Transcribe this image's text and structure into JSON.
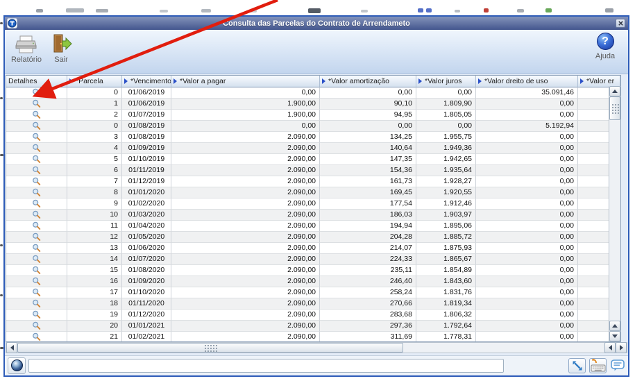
{
  "window": {
    "title": "Consulta das Parcelas do Contrato de Arrendameto"
  },
  "toolbar": {
    "report_label": "Relatório",
    "exit_label": "Sair",
    "help_label": "Ajuda"
  },
  "grid": {
    "columns": [
      "Detalhes",
      "*Parcela",
      "*Vencimento",
      "*Valor a pagar",
      "*Valor amortização",
      "*Valor juros",
      "*Valor dreito de uso",
      "*Valor er"
    ],
    "rows": [
      [
        "0",
        "01/06/2019",
        "0,00",
        "0,00",
        "0,00",
        "35.091,46",
        ""
      ],
      [
        "1",
        "01/06/2019",
        "1.900,00",
        "90,10",
        "1.809,90",
        "0,00",
        ""
      ],
      [
        "2",
        "01/07/2019",
        "1.900,00",
        "94,95",
        "1.805,05",
        "0,00",
        ""
      ],
      [
        "0",
        "01/08/2019",
        "0,00",
        "0,00",
        "0,00",
        "5.192,94",
        ""
      ],
      [
        "3",
        "01/08/2019",
        "2.090,00",
        "134,25",
        "1.955,75",
        "0,00",
        ""
      ],
      [
        "4",
        "01/09/2019",
        "2.090,00",
        "140,64",
        "1.949,36",
        "0,00",
        ""
      ],
      [
        "5",
        "01/10/2019",
        "2.090,00",
        "147,35",
        "1.942,65",
        "0,00",
        ""
      ],
      [
        "6",
        "01/11/2019",
        "2.090,00",
        "154,36",
        "1.935,64",
        "0,00",
        ""
      ],
      [
        "7",
        "01/12/2019",
        "2.090,00",
        "161,73",
        "1.928,27",
        "0,00",
        ""
      ],
      [
        "8",
        "01/01/2020",
        "2.090,00",
        "169,45",
        "1.920,55",
        "0,00",
        ""
      ],
      [
        "9",
        "01/02/2020",
        "2.090,00",
        "177,54",
        "1.912,46",
        "0,00",
        ""
      ],
      [
        "10",
        "01/03/2020",
        "2.090,00",
        "186,03",
        "1.903,97",
        "0,00",
        ""
      ],
      [
        "11",
        "01/04/2020",
        "2.090,00",
        "194,94",
        "1.895,06",
        "0,00",
        ""
      ],
      [
        "12",
        "01/05/2020",
        "2.090,00",
        "204,28",
        "1.885,72",
        "0,00",
        ""
      ],
      [
        "13",
        "01/06/2020",
        "2.090,00",
        "214,07",
        "1.875,93",
        "0,00",
        ""
      ],
      [
        "14",
        "01/07/2020",
        "2.090,00",
        "224,33",
        "1.865,67",
        "0,00",
        ""
      ],
      [
        "15",
        "01/08/2020",
        "2.090,00",
        "235,11",
        "1.854,89",
        "0,00",
        ""
      ],
      [
        "16",
        "01/09/2020",
        "2.090,00",
        "246,40",
        "1.843,60",
        "0,00",
        ""
      ],
      [
        "17",
        "01/10/2020",
        "2.090,00",
        "258,24",
        "1.831,76",
        "0,00",
        ""
      ],
      [
        "18",
        "01/11/2020",
        "2.090,00",
        "270,66",
        "1.819,34",
        "0,00",
        ""
      ],
      [
        "19",
        "01/12/2020",
        "2.090,00",
        "283,68",
        "1.806,32",
        "0,00",
        ""
      ],
      [
        "20",
        "01/01/2021",
        "2.090,00",
        "297,36",
        "1.792,64",
        "0,00",
        ""
      ],
      [
        "21",
        "01/02/2021",
        "2.090,00",
        "311,69",
        "1.778,31",
        "0,00",
        ""
      ]
    ]
  },
  "status": {
    "message": ""
  },
  "icons": {
    "titlebar_logo": "totvs-t-logo",
    "close": "close-x-icon",
    "report": "printer-icon",
    "exit": "door-exit-icon",
    "help": "question-mark-icon",
    "details": "magnifier-icon",
    "status_left": "globe-sphere-icon",
    "resize": "diagonal-arrows-icon",
    "keyboard": "keyboard-icon",
    "chat": "speech-bubble-icon"
  },
  "colors": {
    "window_border": "#2e5cb8",
    "titlebar_top": "#8493ba",
    "titlebar_bottom": "#43568e",
    "header_gradient_bottom": "#d5e1ef",
    "sort_arrow": "#2b50c8",
    "row_alt": "#f0f1f2",
    "annotation_arrow": "#e11d0e"
  }
}
